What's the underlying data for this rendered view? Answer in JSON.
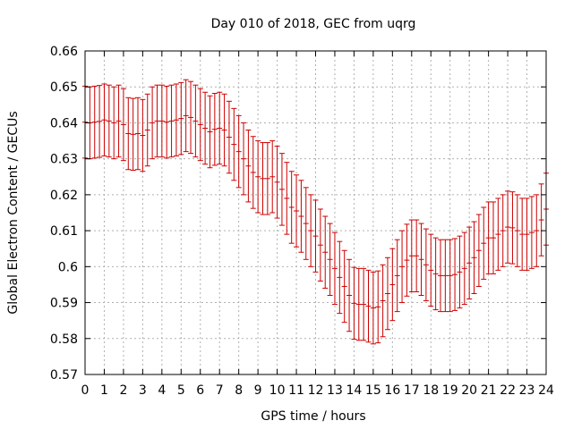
{
  "chart_data": {
    "type": "line",
    "title": "Day 010 of 2018, GEC from uqrg",
    "xlabel": "GPS time / hours",
    "ylabel": "Global Electron Content / GECUs",
    "xlim": [
      0,
      24
    ],
    "ylim": [
      0.57,
      0.66
    ],
    "grid": true,
    "x_ticks": [
      0,
      1,
      2,
      3,
      4,
      5,
      6,
      7,
      8,
      9,
      10,
      11,
      12,
      13,
      14,
      15,
      16,
      17,
      18,
      19,
      20,
      21,
      22,
      23,
      24
    ],
    "y_ticks": [
      0.57,
      0.58,
      0.59,
      0.6,
      0.61,
      0.62,
      0.63,
      0.64,
      0.65,
      0.66
    ],
    "y_tick_labels": [
      "0.57",
      "0.58",
      "0.59",
      "0.6",
      "0.61",
      "0.62",
      "0.63",
      "0.64",
      "0.65",
      "0.66"
    ],
    "colors": {
      "series": "#cc0000",
      "grid": "#b0b0b0",
      "axis": "#000000"
    },
    "series": [
      {
        "x": [
          0,
          0.25,
          0.5,
          0.75,
          1,
          1.25,
          1.5,
          1.75,
          2,
          2.25,
          2.5,
          2.75,
          3,
          3.25,
          3.5,
          3.75,
          4,
          4.25,
          4.5,
          4.75,
          5,
          5.25,
          5.5,
          5.75,
          6,
          6.25,
          6.5,
          6.75,
          7,
          7.25,
          7.5,
          7.75,
          8,
          8.25,
          8.5,
          8.75,
          9,
          9.25,
          9.5,
          9.75,
          10,
          10.25,
          10.5,
          10.75,
          11,
          11.25,
          11.5,
          11.75,
          12,
          12.25,
          12.5,
          12.75,
          13,
          13.25,
          13.5,
          13.75,
          14,
          14.25,
          14.5,
          14.75,
          15,
          15.25,
          15.5,
          15.75,
          16,
          16.25,
          16.5,
          16.75,
          17,
          17.25,
          17.5,
          17.75,
          18,
          18.25,
          18.5,
          18.75,
          19,
          19.25,
          19.5,
          19.75,
          20,
          20.25,
          20.5,
          20.75,
          21,
          21.25,
          21.5,
          21.75,
          22,
          22.25,
          22.5,
          22.75,
          23,
          23.25,
          23.5,
          23.75,
          24
        ],
        "y": [
          0.6402,
          0.64,
          0.6402,
          0.6404,
          0.6408,
          0.6405,
          0.64,
          0.6405,
          0.6395,
          0.637,
          0.6368,
          0.637,
          0.6365,
          0.638,
          0.64,
          0.6405,
          0.6405,
          0.6402,
          0.6405,
          0.6408,
          0.6412,
          0.642,
          0.6415,
          0.6405,
          0.6395,
          0.6385,
          0.6375,
          0.6382,
          0.6385,
          0.638,
          0.636,
          0.634,
          0.632,
          0.63,
          0.628,
          0.6262,
          0.625,
          0.6245,
          0.6245,
          0.625,
          0.6235,
          0.6215,
          0.619,
          0.6165,
          0.6155,
          0.614,
          0.612,
          0.61,
          0.6085,
          0.606,
          0.604,
          0.602,
          0.5995,
          0.597,
          0.5945,
          0.592,
          0.5898,
          0.5895,
          0.5895,
          0.589,
          0.5885,
          0.5888,
          0.5905,
          0.5925,
          0.595,
          0.5975,
          0.6,
          0.6018,
          0.603,
          0.603,
          0.602,
          0.6005,
          0.599,
          0.598,
          0.5975,
          0.5975,
          0.5975,
          0.5978,
          0.5985,
          0.5995,
          0.601,
          0.6025,
          0.6045,
          0.6065,
          0.608,
          0.608,
          0.609,
          0.61,
          0.611,
          0.6108,
          0.61,
          0.609,
          0.609,
          0.6095,
          0.61,
          0.613,
          0.616
        ],
        "error": [
          0.01,
          0.01,
          0.01,
          0.01,
          0.01,
          0.01,
          0.01,
          0.01,
          0.01,
          0.01,
          0.01,
          0.01,
          0.01,
          0.01,
          0.01,
          0.01,
          0.01,
          0.01,
          0.01,
          0.01,
          0.01,
          0.01,
          0.01,
          0.01,
          0.01,
          0.01,
          0.01,
          0.01,
          0.01,
          0.01,
          0.01,
          0.01,
          0.01,
          0.01,
          0.01,
          0.01,
          0.01,
          0.01,
          0.01,
          0.01,
          0.01,
          0.01,
          0.01,
          0.01,
          0.01,
          0.01,
          0.01,
          0.01,
          0.01,
          0.01,
          0.01,
          0.01,
          0.01,
          0.01,
          0.01,
          0.01,
          0.01,
          0.01,
          0.01,
          0.01,
          0.01,
          0.01,
          0.01,
          0.01,
          0.01,
          0.01,
          0.01,
          0.01,
          0.01,
          0.01,
          0.01,
          0.01,
          0.01,
          0.01,
          0.01,
          0.01,
          0.01,
          0.01,
          0.01,
          0.01,
          0.01,
          0.01,
          0.01,
          0.01,
          0.01,
          0.01,
          0.01,
          0.01,
          0.01,
          0.01,
          0.01,
          0.01,
          0.01,
          0.01,
          0.01,
          0.01,
          0.01
        ]
      }
    ]
  }
}
